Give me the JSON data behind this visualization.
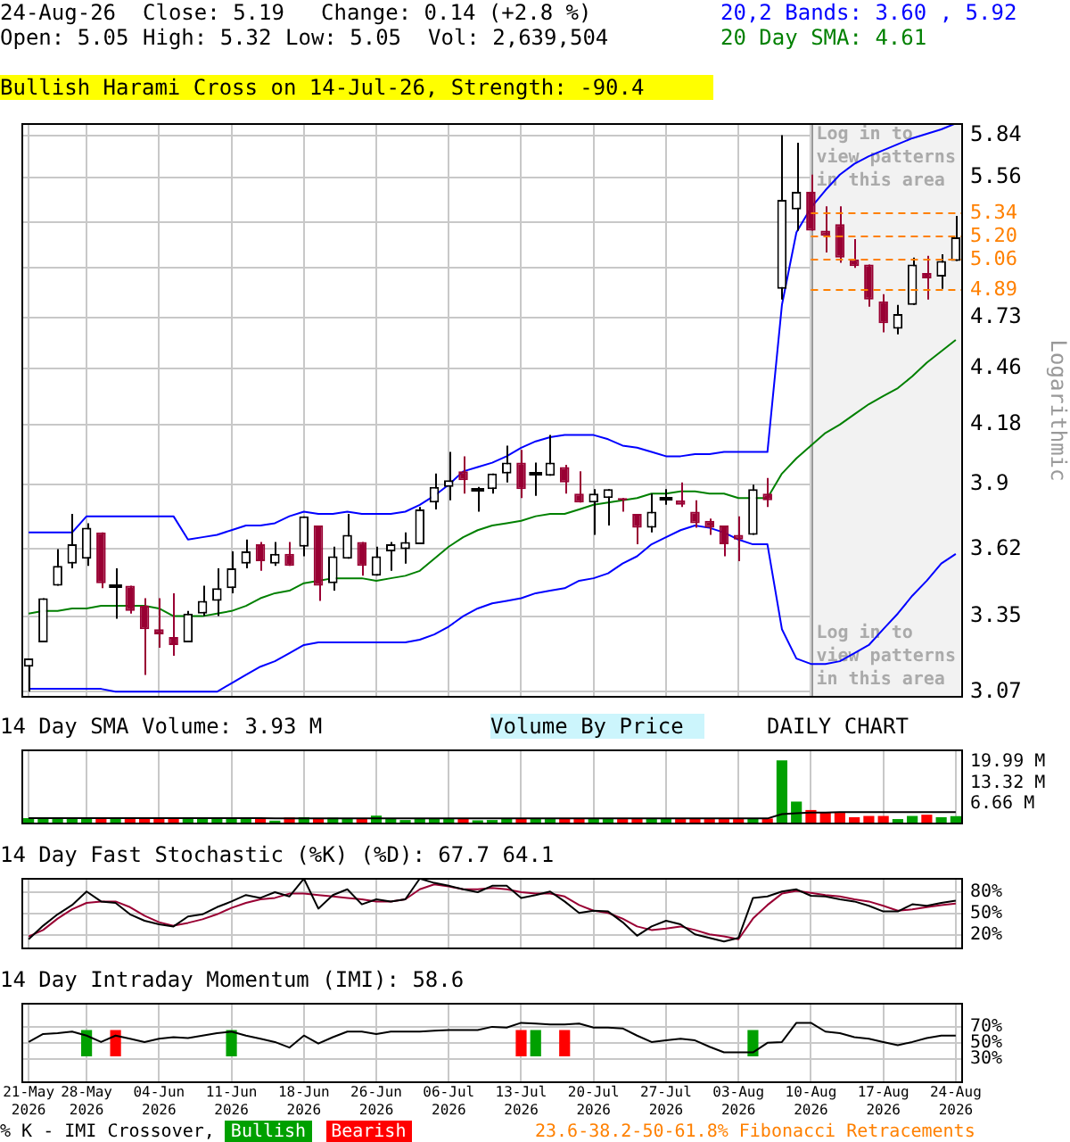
{
  "chart_data": [
    {
      "type": "candlestick",
      "title": "Bullish Harami Cross on 14-Jul-26, Strength: -90.4",
      "ylabel": "Logarithmic",
      "log": true,
      "grid": true,
      "tick_labels": "y",
      "categories": [
        "21-May 2026",
        null,
        null,
        null,
        "28-May 2026",
        null,
        null,
        null,
        null,
        "04-Jun 2026",
        null,
        null,
        null,
        null,
        "11-Jun 2026",
        null,
        null,
        null,
        null,
        "18-Jun 2026",
        null,
        null,
        null,
        null,
        "26-Jun 2026",
        null,
        null,
        null,
        null,
        "06-Jul 2026",
        null,
        null,
        null,
        null,
        "13-Jul 2026",
        null,
        null,
        null,
        null,
        "20-Jul 2026",
        null,
        null,
        null,
        null,
        "27-Jul 2026",
        null,
        null,
        null,
        null,
        "03-Aug 2026",
        null,
        null,
        null,
        null,
        "10-Aug 2026",
        null,
        null,
        null,
        null,
        "17-Aug 2026",
        null,
        null,
        null,
        null,
        "24-Aug 2026"
      ],
      "ohlc": [
        [
          3.16,
          3.19,
          3.07,
          3.19
        ],
        [
          3.25,
          3.42,
          3.25,
          3.42
        ],
        [
          3.47,
          3.62,
          3.47,
          3.55
        ],
        [
          3.56,
          3.77,
          3.54,
          3.64
        ],
        [
          3.58,
          3.73,
          3.55,
          3.71
        ],
        [
          3.69,
          3.69,
          3.46,
          3.48
        ],
        [
          3.47,
          3.54,
          3.34,
          3.47
        ],
        [
          3.47,
          3.47,
          3.36,
          3.37
        ],
        [
          3.39,
          3.42,
          3.13,
          3.3
        ],
        [
          3.3,
          3.42,
          3.23,
          3.28
        ],
        [
          3.27,
          3.44,
          3.2,
          3.24
        ],
        [
          3.25,
          3.37,
          3.25,
          3.36
        ],
        [
          3.36,
          3.47,
          3.35,
          3.41
        ],
        [
          3.41,
          3.54,
          3.35,
          3.46
        ],
        [
          3.46,
          3.61,
          3.44,
          3.54
        ],
        [
          3.56,
          3.66,
          3.54,
          3.61
        ],
        [
          3.64,
          3.65,
          3.53,
          3.57
        ],
        [
          3.56,
          3.65,
          3.55,
          3.6
        ],
        [
          3.6,
          3.65,
          3.55,
          3.55
        ],
        [
          3.63,
          3.76,
          3.59,
          3.76
        ],
        [
          3.72,
          3.72,
          3.41,
          3.47
        ],
        [
          3.48,
          3.63,
          3.45,
          3.59
        ],
        [
          3.58,
          3.77,
          3.58,
          3.68
        ],
        [
          3.65,
          3.65,
          3.51,
          3.55
        ],
        [
          3.51,
          3.63,
          3.51,
          3.59
        ],
        [
          3.61,
          3.65,
          3.53,
          3.64
        ],
        [
          3.62,
          3.69,
          3.56,
          3.65
        ],
        [
          3.64,
          3.8,
          3.64,
          3.79
        ],
        [
          3.82,
          3.95,
          3.79,
          3.89
        ],
        [
          3.89,
          4.05,
          3.83,
          3.92
        ],
        [
          3.96,
          4.03,
          3.86,
          3.92
        ],
        [
          3.88,
          3.89,
          3.78,
          3.88
        ],
        [
          3.88,
          3.95,
          3.86,
          3.95
        ],
        [
          3.95,
          4.08,
          3.91,
          4.0
        ],
        [
          4.0,
          4.06,
          3.84,
          3.88
        ],
        [
          3.95,
          4.0,
          3.85,
          3.95
        ],
        [
          3.94,
          4.13,
          3.94,
          4.0
        ],
        [
          3.98,
          3.99,
          3.86,
          3.91
        ],
        [
          3.86,
          3.96,
          3.82,
          3.82
        ],
        [
          3.82,
          3.88,
          3.68,
          3.86
        ],
        [
          3.84,
          3.88,
          3.72,
          3.88
        ],
        [
          3.84,
          3.84,
          3.78,
          3.83
        ],
        [
          3.77,
          3.77,
          3.64,
          3.71
        ],
        [
          3.71,
          3.86,
          3.69,
          3.78
        ],
        [
          3.84,
          3.88,
          3.81,
          3.84
        ],
        [
          3.83,
          3.91,
          3.8,
          3.81
        ],
        [
          3.78,
          3.83,
          3.71,
          3.73
        ],
        [
          3.74,
          3.75,
          3.68,
          3.71
        ],
        [
          3.72,
          3.72,
          3.59,
          3.64
        ],
        [
          3.68,
          3.76,
          3.57,
          3.66
        ],
        [
          3.68,
          3.9,
          3.68,
          3.88
        ],
        [
          3.86,
          3.93,
          3.8,
          3.83
        ],
        [
          4.89,
          5.84,
          4.83,
          5.42
        ],
        [
          5.36,
          5.79,
          5.23,
          5.47
        ],
        [
          5.47,
          5.58,
          5.23,
          5.23
        ],
        [
          5.23,
          5.38,
          5.1,
          5.2
        ],
        [
          5.27,
          5.38,
          5.04,
          5.07
        ],
        [
          5.06,
          5.18,
          5.01,
          5.02
        ],
        [
          5.03,
          5.03,
          4.79,
          4.83
        ],
        [
          4.82,
          4.86,
          4.65,
          4.7
        ],
        [
          4.67,
          4.8,
          4.64,
          4.75
        ],
        [
          4.8,
          5.07,
          4.8,
          5.03
        ],
        [
          4.98,
          5.08,
          4.83,
          4.95
        ],
        [
          4.96,
          5.09,
          4.89,
          5.05
        ],
        [
          5.05,
          5.32,
          5.05,
          5.19
        ]
      ],
      "series": [
        {
          "type": "line",
          "color": "#0000ff",
          "values": [
            3.69,
            3.69,
            3.69,
            3.69,
            3.76,
            3.76,
            3.76,
            3.76,
            3.76,
            3.76,
            3.76,
            3.66,
            3.67,
            3.68,
            3.7,
            3.72,
            3.72,
            3.73,
            3.76,
            3.78,
            3.77,
            3.77,
            3.78,
            3.77,
            3.77,
            3.77,
            3.78,
            3.81,
            3.85,
            3.9,
            3.96,
            3.98,
            4.0,
            4.03,
            4.07,
            4.1,
            4.12,
            4.13,
            4.13,
            4.13,
            4.11,
            4.08,
            4.07,
            4.05,
            4.03,
            4.03,
            4.04,
            4.04,
            4.05,
            4.05,
            4.05,
            4.05,
            4.8,
            5.22,
            5.37,
            5.48,
            5.58,
            5.65,
            5.7,
            5.74,
            5.78,
            5.82,
            5.85,
            5.88,
            5.92
          ]
        },
        {
          "type": "line",
          "color": "#008000",
          "values": [
            3.36,
            3.37,
            3.37,
            3.38,
            3.38,
            3.39,
            3.39,
            3.39,
            3.39,
            3.38,
            3.35,
            3.35,
            3.35,
            3.36,
            3.37,
            3.39,
            3.42,
            3.44,
            3.45,
            3.48,
            3.49,
            3.5,
            3.5,
            3.5,
            3.49,
            3.5,
            3.51,
            3.53,
            3.58,
            3.63,
            3.67,
            3.7,
            3.72,
            3.73,
            3.74,
            3.76,
            3.77,
            3.77,
            3.79,
            3.81,
            3.82,
            3.83,
            3.84,
            3.86,
            3.86,
            3.87,
            3.87,
            3.86,
            3.86,
            3.84,
            3.84,
            3.84,
            3.95,
            4.02,
            4.08,
            4.14,
            4.18,
            4.23,
            4.28,
            4.32,
            4.36,
            4.42,
            4.49,
            4.55,
            4.61
          ]
        },
        {
          "type": "line",
          "color": "#0000ff",
          "values": [
            3.08,
            3.08,
            3.08,
            3.08,
            3.08,
            3.08,
            3.07,
            3.07,
            3.07,
            3.07,
            3.07,
            3.07,
            3.07,
            3.07,
            3.1,
            3.13,
            3.16,
            3.18,
            3.21,
            3.24,
            3.25,
            3.25,
            3.25,
            3.25,
            3.25,
            3.25,
            3.25,
            3.26,
            3.28,
            3.31,
            3.35,
            3.38,
            3.4,
            3.41,
            3.42,
            3.44,
            3.45,
            3.46,
            3.49,
            3.5,
            3.52,
            3.56,
            3.59,
            3.64,
            3.67,
            3.7,
            3.72,
            3.71,
            3.69,
            3.66,
            3.64,
            3.64,
            3.3,
            3.19,
            3.17,
            3.17,
            3.18,
            3.21,
            3.24,
            3.3,
            3.36,
            3.43,
            3.49,
            3.56,
            3.6
          ]
        }
      ],
      "ylim": [
        3.05,
        5.92
      ],
      "yticks": [
        3.07,
        3.35,
        3.62,
        3.9,
        4.18,
        4.46,
        4.73,
        {
          "value": 5.01,
          "label": null
        },
        {
          "value": 5.28,
          "label": null
        },
        5.56,
        5.84
      ],
      "ref_lines": [
        {
          "axis": "y",
          "value": 5.34,
          "label": "5.34",
          "color": "#ff8000",
          "line_style": "dashed"
        },
        {
          "axis": "y",
          "value": 5.2,
          "label": "5.20",
          "color": "#ff8000",
          "line_style": "dashed"
        },
        {
          "axis": "y",
          "value": 5.06,
          "label": "5.06",
          "color": "#ff8000",
          "line_style": "dashed"
        },
        {
          "axis": "y",
          "value": 4.89,
          "label": "4.89",
          "color": "#ff8000",
          "line_style": "dashed"
        }
      ],
      "bands": [
        {
          "axis": "x",
          "from": "10-Aug 2026",
          "to": "24-Aug 2026",
          "color": "#f2f2f2"
        }
      ],
      "annotations": [
        "24-Aug-26",
        "Close: 5.19",
        "Change: 0.14 (+2.8 %)",
        "20,2 Bands: 3.60 , 5.92",
        "Open: 5.05",
        "High: 5.32",
        "Low: 5.05",
        "Vol: 2,639,504",
        "20 Day SMA: 4.61",
        "Log in to view patterns in this area",
        "Log in to view patterns in this area"
      ]
    },
    {
      "type": "bar",
      "title": "14 Day SMA Volume: 3.93 M",
      "grid": "x",
      "tick_labels": "y",
      "categories": [
        "21-May 2026",
        null,
        null,
        null,
        "28-May 2026",
        null,
        null,
        null,
        null,
        "04-Jun 2026",
        null,
        null,
        null,
        null,
        "11-Jun 2026",
        null,
        null,
        null,
        null,
        "18-Jun 2026",
        null,
        null,
        null,
        null,
        "26-Jun 2026",
        null,
        null,
        null,
        null,
        "06-Jul 2026",
        null,
        null,
        null,
        null,
        "13-Jul 2026",
        null,
        null,
        null,
        null,
        "20-Jul 2026",
        null,
        null,
        null,
        null,
        "27-Jul 2026",
        null,
        null,
        null,
        null,
        "03-Aug 2026",
        null,
        null,
        null,
        null,
        "10-Aug 2026",
        null,
        null,
        null,
        null,
        "17-Aug 2026",
        null,
        null,
        null,
        null,
        "24-Aug 2026"
      ],
      "values": [
        2.0,
        2.1,
        2.0,
        2.1,
        1.9,
        2.2,
        2.0,
        2.3,
        2.0,
        1.9,
        2.0,
        1.9,
        1.8,
        1.9,
        1.9,
        1.9,
        1.8,
        1.2,
        2.2,
        2.3,
        2.0,
        2.1,
        1.9,
        1.8,
        2.8,
        2.0,
        1.4,
        1.8,
        1.9,
        1.9,
        1.8,
        1.3,
        1.4,
        2.0,
        1.8,
        1.8,
        1.7,
        1.8,
        2.0,
        1.8,
        1.8,
        1.7,
        1.8,
        1.9,
        1.8,
        1.7,
        1.8,
        1.7,
        1.7,
        1.7,
        2.0,
        1.9,
        20.5,
        7.3,
        4.6,
        4.0,
        3.7,
        2.3,
        2.7,
        2.7,
        1.7,
        2.7,
        3.1,
        2.3,
        2.64
      ],
      "colors": [
        "#00a000",
        "#00a000",
        "#00a000",
        "#00a000",
        "#00a000",
        "#ff0000",
        "#00a000",
        "#ff0000",
        "#ff0000",
        "#ff0000",
        "#ff0000",
        "#00a000",
        "#00a000",
        "#00a000",
        "#00a000",
        "#00a000",
        "#ff0000",
        "#00a000",
        "#ff0000",
        "#00a000",
        "#ff0000",
        "#00a000",
        "#00a000",
        "#ff0000",
        "#00a000",
        "#00a000",
        "#00a000",
        "#00a000",
        "#00a000",
        "#00a000",
        "#ff0000",
        "#00a000",
        "#00a000",
        "#00a000",
        "#ff0000",
        "#00a000",
        "#00a000",
        "#ff0000",
        "#ff0000",
        "#00a000",
        "#00a000",
        "#ff0000",
        "#ff0000",
        "#00a000",
        "#00a000",
        "#ff0000",
        "#ff0000",
        "#ff0000",
        "#ff0000",
        "#ff0000",
        "#00a000",
        "#ff0000",
        "#00a000",
        "#00a000",
        "#ff0000",
        "#ff0000",
        "#ff0000",
        "#ff0000",
        "#ff0000",
        "#ff0000",
        "#00a000",
        "#00a000",
        "#ff0000",
        "#00a000",
        "#00a000"
      ],
      "series": [
        {
          "type": "line",
          "color": "#000000",
          "values": [
            2.0,
            2.0,
            2.0,
            2.0,
            2.0,
            2.0,
            2.0,
            2.0,
            2.0,
            2.0,
            2.0,
            2.0,
            2.0,
            2.0,
            2.0,
            2.0,
            2.0,
            1.9,
            1.9,
            1.9,
            1.9,
            1.9,
            1.9,
            1.9,
            1.9,
            1.9,
            1.9,
            1.9,
            1.9,
            1.9,
            1.9,
            1.9,
            1.9,
            1.9,
            1.9,
            1.9,
            1.9,
            1.9,
            1.9,
            1.9,
            1.9,
            1.9,
            1.9,
            1.9,
            1.9,
            1.9,
            1.9,
            1.9,
            1.9,
            1.9,
            1.9,
            1.9,
            3.3,
            3.6,
            3.8,
            3.8,
            3.9,
            3.9,
            3.9,
            3.9,
            3.9,
            3.95,
            3.95,
            3.95,
            3.93
          ]
        }
      ],
      "ylim": [
        0,
        24
      ],
      "yticks": [
        {
          "value": 6.66,
          "label": "6.66 M"
        },
        {
          "value": 13.32,
          "label": "13.32 M"
        },
        {
          "value": 19.99,
          "label": "19.99 M"
        }
      ],
      "annotations": [
        "Volume By Price",
        "DAILY CHART"
      ]
    },
    {
      "type": "line",
      "title": "14 Day Fast Stochastic (%K) (%D): 67.7 64.1",
      "grid": true,
      "tick_labels": "y",
      "categories": [
        "21-May 2026",
        null,
        null,
        null,
        "28-May 2026",
        null,
        null,
        null,
        null,
        "04-Jun 2026",
        null,
        null,
        null,
        null,
        "11-Jun 2026",
        null,
        null,
        null,
        null,
        "18-Jun 2026",
        null,
        null,
        null,
        null,
        "26-Jun 2026",
        null,
        null,
        null,
        null,
        "06-Jul 2026",
        null,
        null,
        null,
        null,
        "13-Jul 2026",
        null,
        null,
        null,
        null,
        "20-Jul 2026",
        null,
        null,
        null,
        null,
        "27-Jul 2026",
        null,
        null,
        null,
        null,
        "03-Aug 2026",
        null,
        null,
        null,
        null,
        "10-Aug 2026",
        null,
        null,
        null,
        null,
        "17-Aug 2026",
        null,
        null,
        null,
        null,
        "24-Aug 2026"
      ],
      "series": [
        {
          "color": "#000000",
          "values": [
            14,
            33,
            49,
            62,
            81,
            67,
            65,
            49,
            40,
            35,
            32,
            46,
            49,
            59,
            67,
            76,
            72,
            80,
            74,
            99,
            57,
            76,
            84,
            63,
            70,
            67,
            70,
            99,
            93,
            89,
            84,
            80,
            89,
            89,
            72,
            76,
            81,
            67,
            51,
            54,
            53,
            38,
            19,
            32,
            40,
            35,
            21,
            16,
            11,
            16,
            72,
            74,
            81,
            84,
            75,
            74,
            70,
            67,
            61,
            53,
            53,
            63,
            61,
            65,
            68
          ]
        },
        {
          "color": "#990033",
          "values": [
            18,
            27,
            43,
            56,
            65,
            67,
            67,
            59,
            47,
            38,
            33,
            37,
            42,
            49,
            58,
            65,
            70,
            72,
            78,
            78,
            76,
            74,
            72,
            70,
            67,
            67,
            70,
            84,
            91,
            88,
            84,
            84,
            86,
            84,
            80,
            78,
            78,
            74,
            62,
            54,
            51,
            43,
            32,
            27,
            29,
            32,
            27,
            21,
            18,
            14,
            43,
            62,
            78,
            82,
            79,
            76,
            74,
            70,
            67,
            61,
            54,
            56,
            59,
            62,
            64
          ]
        }
      ],
      "ylim": [
        0,
        100
      ],
      "yticks": [
        {
          "value": 20,
          "label": "20%"
        },
        {
          "value": 50,
          "label": "50%"
        },
        {
          "value": 80,
          "label": "80%"
        }
      ]
    },
    {
      "type": "line",
      "title": "14 Day Intraday Momentum (IMI): 58.6",
      "grid": true,
      "legend": "bottom",
      "legend_title": "% K - IMI Crossover,",
      "categories": [
        "21-May 2026",
        null,
        null,
        null,
        "28-May 2026",
        null,
        null,
        null,
        null,
        "04-Jun 2026",
        null,
        null,
        null,
        null,
        "11-Jun 2026",
        null,
        null,
        null,
        null,
        "18-Jun 2026",
        null,
        null,
        null,
        null,
        "26-Jun 2026",
        null,
        null,
        null,
        null,
        "06-Jul 2026",
        null,
        null,
        null,
        null,
        "13-Jul 2026",
        null,
        null,
        null,
        null,
        "20-Jul 2026",
        null,
        null,
        null,
        null,
        "27-Jul 2026",
        null,
        null,
        null,
        null,
        "03-Aug 2026",
        null,
        null,
        null,
        null,
        "10-Aug 2026",
        null,
        null,
        null,
        null,
        "17-Aug 2026",
        null,
        null,
        null,
        null,
        "24-Aug 2026"
      ],
      "series": [
        {
          "type": "bar",
          "name": "Bullish",
          "color": "#00a000",
          "values": [
            null,
            null,
            null,
            null,
            33,
            null,
            null,
            null,
            null,
            null,
            null,
            null,
            null,
            null,
            33,
            null,
            null,
            null,
            null,
            null,
            null,
            null,
            null,
            null,
            null,
            null,
            null,
            null,
            null,
            null,
            null,
            null,
            null,
            null,
            null,
            33,
            null,
            null,
            null,
            null,
            null,
            null,
            null,
            null,
            null,
            null,
            null,
            null,
            null,
            null,
            33,
            null,
            null,
            null,
            null,
            null,
            null,
            null,
            null,
            null,
            null,
            null,
            null,
            null,
            null
          ],
          "base": [
            null,
            null,
            null,
            null,
            33,
            null,
            null,
            null,
            null,
            null,
            null,
            null,
            null,
            null,
            33,
            null,
            null,
            null,
            null,
            null,
            null,
            null,
            null,
            null,
            null,
            null,
            null,
            null,
            null,
            null,
            null,
            null,
            null,
            null,
            null,
            33,
            null,
            null,
            null,
            null,
            null,
            null,
            null,
            null,
            null,
            null,
            null,
            null,
            null,
            null,
            33,
            null,
            null,
            null,
            null,
            null,
            null,
            null,
            null,
            null,
            null,
            null,
            null,
            null,
            null
          ]
        },
        {
          "type": "bar",
          "name": "Bearish",
          "color": "#ff0000",
          "values": [
            null,
            null,
            null,
            null,
            null,
            null,
            33,
            null,
            null,
            null,
            null,
            null,
            null,
            null,
            null,
            null,
            null,
            null,
            null,
            null,
            null,
            null,
            null,
            null,
            null,
            null,
            null,
            null,
            null,
            null,
            null,
            null,
            null,
            null,
            33,
            null,
            null,
            33,
            null,
            null,
            null,
            null,
            null,
            null,
            null,
            null,
            null,
            null,
            null,
            null,
            null,
            null,
            null,
            null,
            null,
            null,
            null,
            null,
            null,
            null,
            null,
            null,
            null,
            null,
            null
          ],
          "base": [
            null,
            null,
            null,
            null,
            null,
            null,
            33,
            null,
            null,
            null,
            null,
            null,
            null,
            null,
            null,
            null,
            null,
            null,
            null,
            null,
            null,
            null,
            null,
            null,
            null,
            null,
            null,
            null,
            null,
            null,
            null,
            null,
            null,
            null,
            33,
            null,
            null,
            33,
            null,
            null,
            null,
            null,
            null,
            null,
            null,
            null,
            null,
            null,
            null,
            null,
            null,
            null,
            null,
            null,
            null,
            null,
            null,
            null,
            null,
            null,
            null,
            null,
            null,
            null,
            null
          ]
        },
        {
          "type": "line",
          "color": "#000000",
          "values": [
            51,
            61,
            62,
            64,
            59,
            51,
            59,
            55,
            51,
            55,
            57,
            56,
            59,
            62,
            64,
            59,
            55,
            51,
            44,
            59,
            49,
            57,
            64,
            64,
            61,
            64,
            64,
            64,
            65,
            66,
            66,
            66,
            70,
            69,
            75,
            74,
            73,
            73,
            74,
            69,
            69,
            68,
            59,
            51,
            53,
            55,
            53,
            45,
            38,
            38,
            38,
            50,
            51,
            75,
            75,
            64,
            62,
            57,
            55,
            51,
            47,
            51,
            56,
            59,
            59
          ]
        }
      ],
      "ylim": [
        0,
        100
      ],
      "yticks": [
        {
          "value": 30,
          "label": "30%"
        },
        {
          "value": 50,
          "label": "50%"
        },
        {
          "value": 70,
          "label": "70%"
        }
      ],
      "annotations": [
        "23.6-38.2-50-61.8% Fibonacci Retracements"
      ]
    }
  ]
}
